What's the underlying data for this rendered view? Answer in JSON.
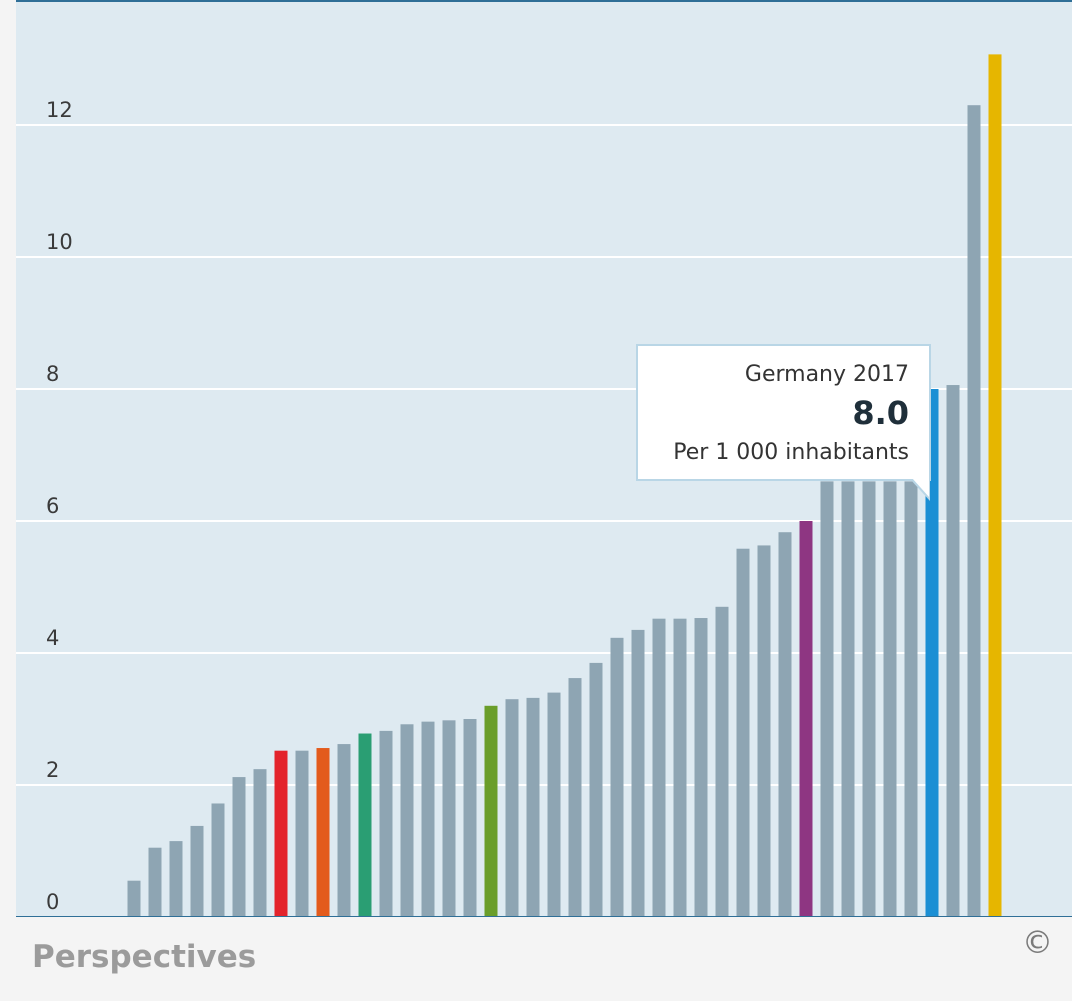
{
  "chart_data": {
    "type": "bar",
    "title": "",
    "xlabel": "",
    "ylabel": "",
    "ylim": [
      0,
      13.8
    ],
    "yticks": [
      0,
      2,
      4,
      6,
      8,
      10,
      12
    ],
    "grid": true,
    "values": [
      0.55,
      1.05,
      1.15,
      1.38,
      1.72,
      2.12,
      2.24,
      2.52,
      2.52,
      2.56,
      2.62,
      2.78,
      2.82,
      2.92,
      2.96,
      2.98,
      3.0,
      3.2,
      3.3,
      3.32,
      3.4,
      3.62,
      3.85,
      4.23,
      4.35,
      4.52,
      4.52,
      4.53,
      4.7,
      5.58,
      5.63,
      5.83,
      6.0,
      6.6,
      6.6,
      6.6,
      6.6,
      6.6,
      8.0,
      8.06,
      12.3,
      13.07
    ],
    "highlight_colors": {
      "7": "#e3232b",
      "9": "#e35b1c",
      "11": "#2a9e73",
      "17": "#6a9e2a",
      "32": "#8e3682",
      "38": "#1b8fd4",
      "41": "#e6b600"
    },
    "default_bar_color": "#8ea5b3"
  },
  "tooltip": {
    "line1": "Germany 2017",
    "value": "8.0",
    "unit": "Per 1 000 inhabitants"
  },
  "footer": {
    "title": "Perspectives",
    "copyright_symbol": "©"
  },
  "colors": {
    "background": "#deeaf1",
    "gridline": "#ffffff",
    "axis": "#2f6f97"
  }
}
